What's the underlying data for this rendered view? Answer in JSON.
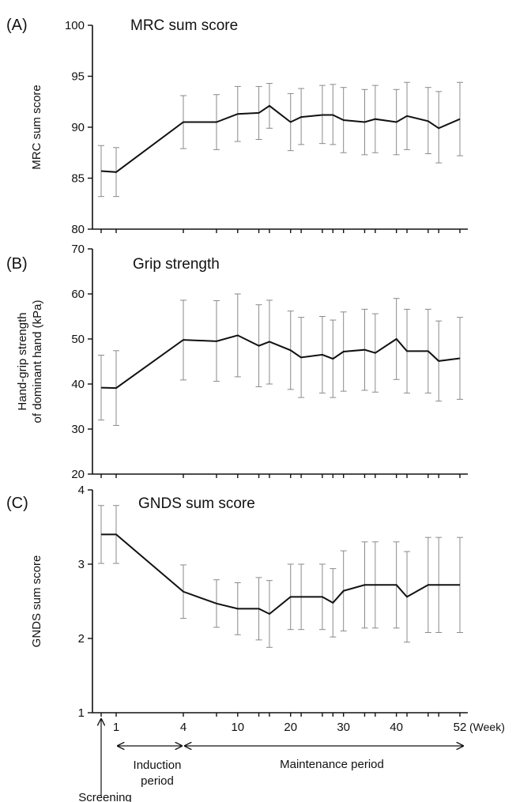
{
  "chart_data": [
    {
      "type": "line",
      "panel_label": "(A)",
      "title": "MRC sum score",
      "ylabel": "MRC sum score",
      "ylim": [
        80,
        100
      ],
      "yticks": [
        80,
        85,
        90,
        95,
        100
      ],
      "x": [
        0,
        1,
        4,
        6,
        8,
        10,
        12,
        14,
        16,
        18,
        20,
        22,
        24,
        26,
        28,
        30,
        32,
        34,
        36,
        38,
        40,
        42,
        44,
        46,
        48,
        50,
        52
      ],
      "xlabel_positions": [
        0,
        1,
        4,
        10,
        20,
        30,
        40,
        52
      ],
      "points": [
        {
          "x": 0,
          "y": 85.7,
          "lo": 83.2,
          "hi": 88.2
        },
        {
          "x": 1,
          "y": 85.6,
          "lo": 83.2,
          "hi": 88.0
        },
        {
          "x": 4,
          "y": 90.5,
          "lo": 87.9,
          "hi": 93.1
        },
        {
          "x": 6,
          "y": 90.5,
          "lo": 87.8,
          "hi": 93.2
        },
        {
          "x": 10,
          "y": 91.3,
          "lo": 88.6,
          "hi": 94.0
        },
        {
          "x": 14,
          "y": 91.4,
          "lo": 88.8,
          "hi": 94.0
        },
        {
          "x": 16,
          "y": 92.1,
          "lo": 89.9,
          "hi": 94.3
        },
        {
          "x": 20,
          "y": 90.5,
          "lo": 87.7,
          "hi": 93.3
        },
        {
          "x": 22,
          "y": 91.0,
          "lo": 88.3,
          "hi": 93.8
        },
        {
          "x": 26,
          "y": 91.2,
          "lo": 88.4,
          "hi": 94.1
        },
        {
          "x": 28,
          "y": 91.2,
          "lo": 88.3,
          "hi": 94.2
        },
        {
          "x": 30,
          "y": 90.7,
          "lo": 87.5,
          "hi": 93.9
        },
        {
          "x": 34,
          "y": 90.5,
          "lo": 87.3,
          "hi": 93.7
        },
        {
          "x": 36,
          "y": 90.8,
          "lo": 87.5,
          "hi": 94.1
        },
        {
          "x": 40,
          "y": 90.5,
          "lo": 87.3,
          "hi": 93.7
        },
        {
          "x": 42,
          "y": 91.1,
          "lo": 87.8,
          "hi": 94.4
        },
        {
          "x": 46,
          "y": 90.6,
          "lo": 87.4,
          "hi": 93.9
        },
        {
          "x": 48,
          "y": 89.9,
          "lo": 86.5,
          "hi": 93.5
        },
        {
          "x": 52,
          "y": 90.8,
          "lo": 87.2,
          "hi": 94.4
        }
      ]
    },
    {
      "type": "line",
      "panel_label": "(B)",
      "title": "Grip strength",
      "ylabel_lines": [
        "Hand-grip strength",
        "of dominant hand (kPa)"
      ],
      "ylim": [
        20,
        70
      ],
      "yticks": [
        20,
        30,
        40,
        50,
        60,
        70
      ],
      "points": [
        {
          "x": 0,
          "y": 39.2,
          "lo": 32.0,
          "hi": 46.4
        },
        {
          "x": 1,
          "y": 39.1,
          "lo": 30.8,
          "hi": 47.4
        },
        {
          "x": 4,
          "y": 49.8,
          "lo": 40.9,
          "hi": 58.6
        },
        {
          "x": 6,
          "y": 49.5,
          "lo": 40.6,
          "hi": 58.5
        },
        {
          "x": 10,
          "y": 50.8,
          "lo": 41.6,
          "hi": 60.0
        },
        {
          "x": 14,
          "y": 48.5,
          "lo": 39.4,
          "hi": 57.6
        },
        {
          "x": 16,
          "y": 49.4,
          "lo": 40.0,
          "hi": 58.6
        },
        {
          "x": 20,
          "y": 47.5,
          "lo": 38.8,
          "hi": 56.2
        },
        {
          "x": 22,
          "y": 45.9,
          "lo": 37.0,
          "hi": 54.8
        },
        {
          "x": 26,
          "y": 46.5,
          "lo": 38.0,
          "hi": 55.0
        },
        {
          "x": 28,
          "y": 45.6,
          "lo": 37.0,
          "hi": 54.2
        },
        {
          "x": 30,
          "y": 47.2,
          "lo": 38.4,
          "hi": 56.0
        },
        {
          "x": 34,
          "y": 47.6,
          "lo": 38.6,
          "hi": 56.6
        },
        {
          "x": 36,
          "y": 46.9,
          "lo": 38.2,
          "hi": 55.6
        },
        {
          "x": 40,
          "y": 50.0,
          "lo": 41.0,
          "hi": 59.0
        },
        {
          "x": 42,
          "y": 47.3,
          "lo": 38.0,
          "hi": 56.6
        },
        {
          "x": 46,
          "y": 47.3,
          "lo": 38.0,
          "hi": 56.6
        },
        {
          "x": 48,
          "y": 45.1,
          "lo": 36.2,
          "hi": 54.0
        },
        {
          "x": 52,
          "y": 45.7,
          "lo": 36.6,
          "hi": 54.8
        }
      ]
    },
    {
      "type": "line",
      "panel_label": "(C)",
      "title": "GNDS sum score",
      "ylabel": "GNDS sum score",
      "ylim": [
        1,
        4
      ],
      "yticks": [
        1,
        2,
        3,
        4
      ],
      "points": [
        {
          "x": 0,
          "y": 3.4,
          "lo": 3.01,
          "hi": 3.79
        },
        {
          "x": 1,
          "y": 3.4,
          "lo": 3.01,
          "hi": 3.79
        },
        {
          "x": 4,
          "y": 2.63,
          "lo": 2.27,
          "hi": 2.99
        },
        {
          "x": 6,
          "y": 2.47,
          "lo": 2.15,
          "hi": 2.79
        },
        {
          "x": 10,
          "y": 2.4,
          "lo": 2.05,
          "hi": 2.75
        },
        {
          "x": 14,
          "y": 2.4,
          "lo": 1.98,
          "hi": 2.82
        },
        {
          "x": 16,
          "y": 2.33,
          "lo": 1.88,
          "hi": 2.78
        },
        {
          "x": 20,
          "y": 2.56,
          "lo": 2.12,
          "hi": 3.0
        },
        {
          "x": 22,
          "y": 2.56,
          "lo": 2.12,
          "hi": 3.0
        },
        {
          "x": 26,
          "y": 2.56,
          "lo": 2.12,
          "hi": 3.0
        },
        {
          "x": 28,
          "y": 2.48,
          "lo": 2.02,
          "hi": 2.94
        },
        {
          "x": 30,
          "y": 2.64,
          "lo": 2.1,
          "hi": 3.18
        },
        {
          "x": 34,
          "y": 2.72,
          "lo": 2.14,
          "hi": 3.3
        },
        {
          "x": 36,
          "y": 2.72,
          "lo": 2.14,
          "hi": 3.3
        },
        {
          "x": 40,
          "y": 2.72,
          "lo": 2.14,
          "hi": 3.3
        },
        {
          "x": 42,
          "y": 2.56,
          "lo": 1.95,
          "hi": 3.17
        },
        {
          "x": 46,
          "y": 2.72,
          "lo": 2.08,
          "hi": 3.36
        },
        {
          "x": 48,
          "y": 2.72,
          "lo": 2.08,
          "hi": 3.36
        },
        {
          "x": 52,
          "y": 2.72,
          "lo": 2.08,
          "hi": 3.36
        }
      ]
    }
  ],
  "x_axis": {
    "tick_labels": [
      {
        "x": 1,
        "label": "1"
      },
      {
        "x": 4,
        "label": "4"
      },
      {
        "x": 10,
        "label": "10"
      },
      {
        "x": 20,
        "label": "20"
      },
      {
        "x": 30,
        "label": "30"
      },
      {
        "x": 40,
        "label": "40"
      },
      {
        "x": 52,
        "label": "52"
      }
    ],
    "unit": "(Week)"
  },
  "periods": {
    "induction": [
      "Induction",
      "period"
    ],
    "maintenance": "Maintenance period",
    "screening": "Screening"
  }
}
